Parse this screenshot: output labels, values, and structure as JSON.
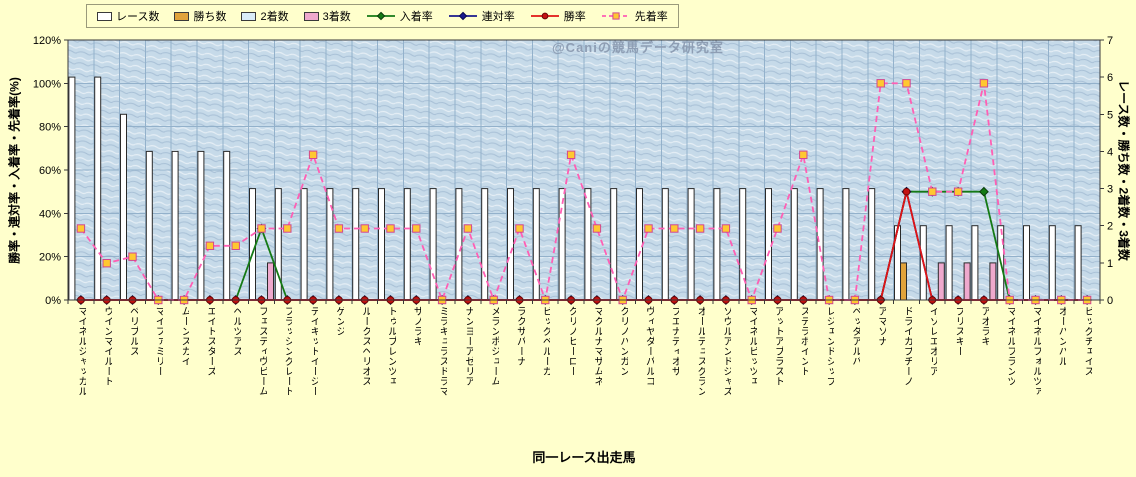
{
  "watermark": "@Caniの競馬データ研究室",
  "chart_data": {
    "type": "bar+line combo",
    "xlabel": "同一レース出走馬",
    "ylabel_left": "勝率・連対率・入着率・先着率(%)",
    "ylabel_right": "レース数・勝ち数・2着数・3着数",
    "legend_position": "top",
    "grid": true,
    "left_axis": {
      "min": 0,
      "max": 120,
      "step": 20,
      "suffix": "%"
    },
    "right_axis": {
      "min": 0,
      "max": 7,
      "step": 1
    },
    "categories": [
      "マイネルジャッカル",
      "ウインマイルート",
      "ベリブルス",
      "マイファミリー",
      "ムーンスカイ",
      "エイトスターズ",
      "ヘルツアス",
      "フェスティヴビーム",
      "フラッシングレート",
      "テイキットイージー",
      "ゲンジ",
      "ルークスヘリオス",
      "トゥルブレンツェ",
      "サノラキ",
      "ミラキュラスドラマ",
      "ナンヨーアゼリア",
      "メランポジューム",
      "ラクサパーナ",
      "ビッグベルーガ",
      "クリノヒーロー",
      "マクルナマサムネ",
      "クリノハンガン",
      "ヴィヤダーパルコ",
      "ブエナディオサ",
      "オールデュスグラン",
      "ソウルアンドジャズ",
      "マイネルビッツェ",
      "アットアブラスト",
      "ステラポイント",
      "レジェンドシップ",
      "ベッダアルバ",
      "アマソナ",
      "ドライカプチーノ",
      "イゾレエオリア",
      "プリスキー",
      "アオラキ",
      "マイネルフランツ",
      "マイネルフォルツァ",
      "オーバンバル",
      "ビッグチェイス"
    ],
    "bar_series": [
      {
        "id": "races",
        "name": "レース数",
        "axis": "right",
        "fill": "#FFFFFF",
        "values": [
          6,
          6,
          5,
          4,
          4,
          4,
          4,
          3,
          3,
          3,
          3,
          3,
          3,
          3,
          3,
          3,
          3,
          3,
          3,
          3,
          3,
          3,
          3,
          3,
          3,
          3,
          3,
          3,
          3,
          3,
          3,
          3,
          2,
          2,
          2,
          2,
          2,
          2,
          2,
          2
        ]
      },
      {
        "id": "wins",
        "name": "勝ち数",
        "axis": "right",
        "fill": "#E1A33B",
        "values": [
          0,
          0,
          0,
          0,
          0,
          0,
          0,
          0,
          0,
          0,
          0,
          0,
          0,
          0,
          0,
          0,
          0,
          0,
          0,
          0,
          0,
          0,
          0,
          0,
          0,
          0,
          0,
          0,
          0,
          0,
          0,
          0,
          1,
          0,
          0,
          0,
          0,
          0,
          0,
          0
        ]
      },
      {
        "id": "second-places",
        "name": "2着数",
        "axis": "right",
        "fill": "#D9ECF8",
        "values": [
          0,
          0,
          0,
          0,
          0,
          0,
          0,
          0,
          0,
          0,
          0,
          0,
          0,
          0,
          0,
          0,
          0,
          0,
          0,
          0,
          0,
          0,
          0,
          0,
          0,
          0,
          0,
          0,
          0,
          0,
          0,
          0,
          0,
          0,
          0,
          0,
          0,
          0,
          0,
          0
        ]
      },
      {
        "id": "third-places",
        "name": "3着数",
        "axis": "right",
        "fill": "#EFA9CD",
        "values": [
          0,
          0,
          0,
          0,
          0,
          0,
          0,
          1,
          0,
          0,
          0,
          0,
          0,
          0,
          0,
          0,
          0,
          0,
          0,
          0,
          0,
          0,
          0,
          0,
          0,
          0,
          0,
          0,
          0,
          0,
          0,
          0,
          0,
          1,
          1,
          1,
          0,
          0,
          0,
          0
        ]
      }
    ],
    "line_series": [
      {
        "id": "in-money-rate",
        "name": "入着率",
        "axis": "left",
        "color": "#157A15",
        "marker": "diamond",
        "marker_fill": "#157A15",
        "marker_edge": "#0B3D0B",
        "dash": false,
        "values": [
          0,
          0,
          0,
          0,
          0,
          0,
          0,
          33,
          0,
          0,
          0,
          0,
          0,
          0,
          0,
          0,
          0,
          0,
          0,
          0,
          0,
          0,
          0,
          0,
          0,
          0,
          0,
          0,
          0,
          0,
          0,
          0,
          50,
          50,
          50,
          50,
          0,
          0,
          0,
          0
        ]
      },
      {
        "id": "top2-rate",
        "name": "連対率",
        "axis": "left",
        "color": "#1A1A8C",
        "marker": "diamond",
        "marker_fill": "#1A1A8C",
        "marker_edge": "#0A0A50",
        "dash": false,
        "values": [
          0,
          0,
          0,
          0,
          0,
          0,
          0,
          0,
          0,
          0,
          0,
          0,
          0,
          0,
          0,
          0,
          0,
          0,
          0,
          0,
          0,
          0,
          0,
          0,
          0,
          0,
          0,
          0,
          0,
          0,
          0,
          0,
          50,
          0,
          0,
          0,
          0,
          0,
          0,
          0
        ]
      },
      {
        "id": "win-rate",
        "name": "勝率",
        "axis": "left",
        "color": "#E01414",
        "marker": "circle",
        "marker_fill": "#C41212",
        "marker_edge": "#6A0606",
        "dash": false,
        "values": [
          0,
          0,
          0,
          0,
          0,
          0,
          0,
          0,
          0,
          0,
          0,
          0,
          0,
          0,
          0,
          0,
          0,
          0,
          0,
          0,
          0,
          0,
          0,
          0,
          0,
          0,
          0,
          0,
          0,
          0,
          0,
          0,
          50,
          0,
          0,
          0,
          0,
          0,
          0,
          0
        ]
      },
      {
        "id": "finish-ahead-rate",
        "name": "先着率",
        "axis": "left",
        "color": "#FF5FB4",
        "marker": "square",
        "marker_fill": "#FFC830",
        "marker_edge": "#D2478F",
        "dash": true,
        "values": [
          33,
          17,
          20,
          0,
          0,
          25,
          25,
          33,
          33,
          67,
          33,
          33,
          33,
          33,
          0,
          33,
          0,
          33,
          0,
          67,
          33,
          0,
          33,
          33,
          33,
          33,
          0,
          33,
          67,
          0,
          0,
          100,
          100,
          50,
          50,
          100,
          0,
          0,
          0,
          0
        ]
      }
    ],
    "colors": {
      "page_bg": "#FFFFCC",
      "plot_base": "#C6DAE9",
      "grid": "#93B1CB",
      "axis": "#3A3A3A",
      "bar_border": "#2A2A2A",
      "watermark": "#8E9EB4"
    }
  }
}
